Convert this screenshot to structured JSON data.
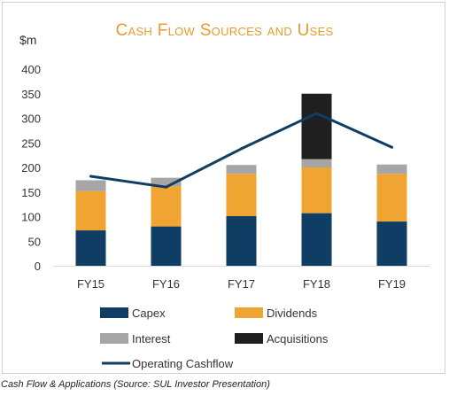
{
  "chart_data": {
    "type": "bar",
    "stacked": true,
    "title": "Cash Flow Sources and Uses",
    "unit_label": "$m",
    "categories": [
      "FY15",
      "FY16",
      "FY17",
      "FY18",
      "FY19"
    ],
    "ylim": [
      0,
      400
    ],
    "yticks": [
      0,
      50,
      100,
      150,
      200,
      250,
      300,
      350,
      400
    ],
    "grid": false,
    "series": [
      {
        "name": "Capex",
        "type": "bar",
        "color": "#0f3d63",
        "values": [
          72,
          80,
          101,
          107,
          90
        ]
      },
      {
        "name": "Dividends",
        "type": "bar",
        "color": "#f0a431",
        "values": [
          80,
          82,
          86,
          93,
          97
        ]
      },
      {
        "name": "Interest",
        "type": "bar",
        "color": "#a6a6a6",
        "values": [
          22,
          17,
          18,
          17,
          19
        ]
      },
      {
        "name": "Acquisitions",
        "type": "bar",
        "color": "#1f1f1f",
        "values": [
          0,
          0,
          0,
          133,
          0
        ]
      },
      {
        "name": "Operating Cashflow",
        "type": "line",
        "color": "#0f3d63",
        "values": [
          182,
          160,
          238,
          310,
          241
        ]
      }
    ],
    "legend_position": "bottom"
  },
  "caption": "Cash Flow & Applications (Source: SUL Investor Presentation)"
}
